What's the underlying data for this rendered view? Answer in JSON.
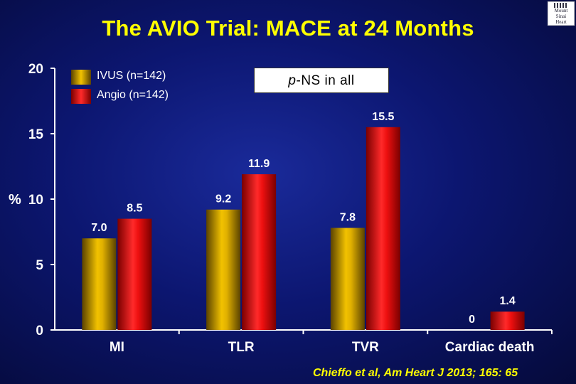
{
  "title": "The AVIO Trial:  MACE at 24 Months",
  "logo": {
    "lines": [
      "Mount",
      "Sinai",
      "Heart"
    ],
    "icon": "building-logo-icon"
  },
  "p_note": {
    "prefix": "p",
    "text": "-NS in all"
  },
  "citation": "Chieffo et al, Am Heart J 2013; 165: 65",
  "colors": {
    "ivus": "#d9a800",
    "angio": "#ff1a1a",
    "background": "#0c1670",
    "title": "#ffff00"
  },
  "chart_data": {
    "type": "bar",
    "categories": [
      "MI",
      "TLR",
      "TVR",
      "Cardiac death"
    ],
    "series": [
      {
        "name": "IVUS (n=142)",
        "values": [
          7.0,
          9.2,
          7.8,
          0
        ],
        "labels": [
          "7.0",
          "9.2",
          "7.8",
          "0"
        ]
      },
      {
        "name": "Angio (n=142)",
        "values": [
          8.5,
          11.9,
          15.5,
          1.4
        ],
        "labels": [
          "8.5",
          "11.9",
          "15.5",
          "1.4"
        ]
      }
    ],
    "ylabel": "%",
    "ylim": [
      0,
      20
    ],
    "yticks": [
      "0",
      "5",
      "10",
      "15",
      "20"
    ],
    "legend": "top-left",
    "grid": false
  }
}
